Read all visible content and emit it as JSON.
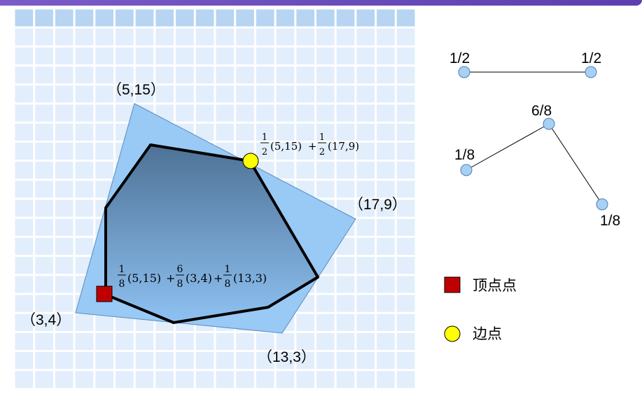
{
  "outer_polygon": {
    "vertices": [
      {
        "label": "（5,15）"
      },
      {
        "label": "（17,9）"
      },
      {
        "label": "（13,3）"
      },
      {
        "label": "（3,4）"
      }
    ]
  },
  "annotations": {
    "edge_point_formula": {
      "c1": "(5,15)",
      "op": "+",
      "c2": "(17,9)"
    },
    "vertex_point_formula": {
      "c1": "(5,15)",
      "c2": "(3,4)",
      "c3": "(13,3)"
    },
    "fractions": {
      "half_num": "1",
      "half_den": "2",
      "one": "1",
      "six": "6",
      "eight": "8"
    }
  },
  "graph_small": {
    "left_weight": "1/2",
    "right_weight": "1/2"
  },
  "graph_tree": {
    "top_weight": "6/8",
    "left_weight": "1/8",
    "right_weight": "1/8"
  },
  "legend": {
    "vertex_point_label": "顶点点",
    "edge_point_label": "边点"
  },
  "colors": {
    "grid_cell": "#e2eefb",
    "grid_header": "#b7d4f3",
    "outer_fill": "#99c9f5",
    "inner_top": "#4e7296",
    "inner_bottom": "#8ec1f2",
    "vertex_marker": "#c00000",
    "edge_marker": "#ffff00",
    "node": "#a8d0f5"
  }
}
